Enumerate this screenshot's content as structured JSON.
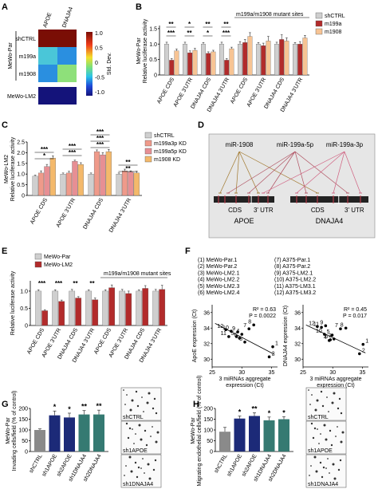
{
  "panels": {
    "A": {
      "label": "A",
      "columns": [
        "APOE",
        "DNAJA4"
      ],
      "group_label": "MeWo-Par",
      "row_labels": [
        "shCTRL",
        "m199a",
        "m1908",
        "MeWo-LM2"
      ],
      "colorbar": {
        "title": "Std. Dev.",
        "ticks": [
          "1.0",
          "0.5",
          "0",
          "-0.5",
          "-1.0"
        ]
      }
    },
    "B": {
      "label": "B",
      "ylabel": "MeWo-Par\nRelative luciferase activity",
      "bracket_label": "m199a/m1908 mutant sites",
      "categories": [
        "APOE CDS",
        "APOE 3'UTR",
        "DNAJA4 CDS",
        "DNAJA4 3'UTR",
        "APOE CDS",
        "APOE 3'UTR",
        "DNAJA4 CDS",
        "DNAJA4 3'UTR"
      ],
      "legend": [
        "shCTRL",
        "m199a",
        "m1908"
      ],
      "ticks": [
        "0",
        "0.5",
        "1.0",
        "1.5"
      ],
      "sig": [
        "**",
        "***",
        "*",
        "**",
        "**",
        "*",
        "**",
        "***"
      ]
    },
    "C": {
      "label": "C",
      "ylabel": "MeWo-LM2\nRelative luciferase activity",
      "categories": [
        "APOE CDS",
        "APOE 3'UTR",
        "DNAJA4 CDS",
        "DNAJA4 3'UTR"
      ],
      "legend": [
        "shCTRL",
        "m199a3p KD",
        "m199a5p KD",
        "m1908 KD"
      ],
      "ticks": [
        "0",
        "0.5",
        "1.0",
        "1.5",
        "2.0",
        "2.5"
      ],
      "sig": [
        "***",
        "*",
        "***",
        "***",
        "***",
        "***",
        "***",
        "**",
        "**"
      ]
    },
    "D": {
      "label": "D",
      "mirnas": [
        "miR-1908",
        "miR-199a-5p",
        "miR-199a-3p"
      ],
      "genes": [
        "APOE",
        "DNAJA4"
      ],
      "regions": [
        "CDS",
        "3' UTR"
      ]
    },
    "E": {
      "label": "E",
      "ylabel": "Relative luciferase activity",
      "legend": [
        "MeWo-Par",
        "MeWo-LM2"
      ],
      "bracket_label": "m199a/m1908 mutant sites",
      "categories": [
        "APOE CDS",
        "APOE 3'UTR",
        "DNAJA4 CDS",
        "DNAJA4 3'UTR",
        "APOE CDS",
        "APOE 3'UTR",
        "DNAJA4 CDS",
        "DNAJA4 3'UTR"
      ],
      "ticks": [
        "0",
        "0.5",
        "1.0"
      ],
      "sig": [
        "***",
        "***",
        "**",
        "**"
      ]
    },
    "F": {
      "label": "F",
      "legend_left": [
        "(1) MeWo-Par.1",
        "(2) MeWo-Par.2",
        "(3) MeWo-LM2.1",
        "(4) MeWo-LM2.2",
        "(5) MeWo-LM2.3",
        "(6) MeWo-LM2.4"
      ],
      "legend_right": [
        "(7) A375-Par.1",
        "(8) A375-Par.2",
        "(9) A375-LM2.1",
        "(10) A375-LM2.2",
        "(11) A375-LM3.1",
        "(12) A375-LM3.2"
      ],
      "left_stats": [
        "R² = 0.63",
        "P = 0.0022"
      ],
      "right_stats": [
        "R² = 0.45",
        "P = 0.017"
      ],
      "left_ylabel": "ApoE expression (Ct)",
      "right_ylabel": "DNAJA4 expression (Ct)",
      "xlabel": "3 miRNAs aggregate expression (Ct)",
      "xticks": [
        "25",
        "30",
        "35"
      ],
      "yticks": [
        "30",
        "32",
        "34",
        "36"
      ]
    },
    "G": {
      "label": "G",
      "ylabel": "MeWo-Par\nInvading cells/field (% of control)",
      "categories": [
        "shCTRL",
        "sh1APOE",
        "sh2APOE",
        "sh1DNAJA4",
        "sh2DNAJA4"
      ],
      "ticks": [
        "0",
        "50",
        "100",
        "150",
        "200"
      ],
      "sig": [
        "*",
        "*",
        "**",
        "**"
      ],
      "image_labels": [
        "shCTRL",
        "sh1APOE",
        "sh1DNAJA4"
      ]
    },
    "H": {
      "label": "H",
      "ylabel": "MeWo-Par\nMigrating endothelial cells/field (% of control)",
      "categories": [
        "shCTRL",
        "sh1APOE",
        "sh2APOE",
        "sh1DNAJA4",
        "sh2DNAJA4"
      ],
      "ticks": [
        "0",
        "50",
        "100",
        "150",
        "200"
      ],
      "sig": [
        "*",
        "**",
        "*",
        "*"
      ],
      "image_labels": [
        "shCTRL",
        "sh1APOE",
        "sh1DNAJA4"
      ]
    }
  },
  "colors": {
    "grey": "#cfcfcf",
    "red": "#b22b2b",
    "pink": "#e78f94",
    "salmon": "#ef9a8a",
    "orange": "#f4b96b",
    "peach": "#f7c494",
    "navy": "#1c2a78",
    "teal": "#357a72",
    "dotgrey": "#8a8a8a"
  },
  "chart_data": [
    {
      "panel": "A",
      "type": "heatmap",
      "x": [
        "APOE",
        "DNAJA4"
      ],
      "y": [
        "shCTRL",
        "m199a",
        "m1908",
        "MeWo-LM2"
      ],
      "values": [
        [
          1.1,
          1.1
        ],
        [
          0.1,
          -0.2
        ],
        [
          -0.2,
          0.2
        ],
        [
          -1.0,
          -1.0
        ]
      ]
    },
    {
      "panel": "B",
      "type": "bar",
      "ylim": [
        0,
        1.6
      ],
      "categories": [
        "APOE CDS",
        "APOE 3'UTR",
        "DNAJA4 CDS",
        "DNAJA4 3'UTR",
        "APOE CDS",
        "APOE 3'UTR",
        "DNAJA4 CDS",
        "DNAJA4 3'UTR"
      ],
      "series": [
        {
          "name": "shCTRL",
          "values": [
            1.0,
            1.0,
            1.0,
            1.0,
            1.0,
            1.0,
            1.0,
            1.0
          ],
          "errors": [
            0.06,
            0.06,
            0.05,
            0.06,
            0.08,
            0.05,
            0.06,
            0.05
          ]
        },
        {
          "name": "m199a",
          "values": [
            0.48,
            0.72,
            0.7,
            0.48,
            1.05,
            0.95,
            1.15,
            1.0
          ],
          "errors": [
            0.05,
            0.06,
            0.05,
            0.05,
            0.1,
            0.08,
            0.15,
            0.08
          ]
        },
        {
          "name": "m1908",
          "values": [
            0.78,
            0.8,
            0.75,
            0.85,
            1.25,
            1.1,
            1.1,
            1.2
          ],
          "errors": [
            0.06,
            0.06,
            0.05,
            0.05,
            0.12,
            0.15,
            0.1,
            0.08
          ]
        }
      ]
    },
    {
      "panel": "C",
      "type": "bar",
      "ylim": [
        0,
        2.5
      ],
      "categories": [
        "APOE CDS",
        "APOE 3'UTR",
        "DNAJA4 CDS",
        "DNAJA4 3'UTR"
      ],
      "series": [
        {
          "name": "shCTRL",
          "values": [
            0.9,
            1.0,
            1.0,
            1.0
          ],
          "errors": [
            0.05,
            0.05,
            0.05,
            0.05
          ]
        },
        {
          "name": "m199a3p KD",
          "values": [
            1.05,
            1.05,
            2.05,
            1.15
          ],
          "errors": [
            0.1,
            0.08,
            0.08,
            0.08
          ]
        },
        {
          "name": "m199a5p KD",
          "values": [
            1.35,
            1.6,
            1.9,
            1.1
          ],
          "errors": [
            0.1,
            0.05,
            0.1,
            0.05
          ]
        },
        {
          "name": "m1908 KD",
          "values": [
            1.75,
            1.45,
            2.05,
            1.05
          ],
          "errors": [
            0.1,
            0.08,
            0.1,
            0.08
          ]
        }
      ]
    },
    {
      "panel": "E",
      "type": "bar",
      "ylim": [
        0,
        1.3
      ],
      "categories": [
        "APOE CDS",
        "APOE 3'UTR",
        "DNAJA4 CDS",
        "DNAJA4 3'UTR",
        "APOE CDS",
        "APOE 3'UTR",
        "DNAJA4 CDS",
        "DNAJA4 3'UTR"
      ],
      "series": [
        {
          "name": "MeWo-Par",
          "values": [
            1.0,
            1.0,
            1.0,
            1.0,
            1.0,
            1.0,
            1.0,
            1.0
          ],
          "errors": [
            0.04,
            0.04,
            0.05,
            0.04,
            0.04,
            0.05,
            0.04,
            0.05
          ]
        },
        {
          "name": "MeWo-LM2",
          "values": [
            0.43,
            0.7,
            0.8,
            0.75,
            1.1,
            0.93,
            1.08,
            1.05
          ],
          "errors": [
            0.03,
            0.04,
            0.04,
            0.05,
            0.08,
            0.07,
            0.08,
            0.12
          ]
        }
      ]
    },
    {
      "panel": "F-left",
      "type": "scatter",
      "xlim": [
        25,
        36
      ],
      "ylim": [
        29,
        37
      ],
      "points": [
        {
          "id": 1,
          "x": 35.2,
          "y": 31.6
        },
        {
          "id": 2,
          "x": 34.6,
          "y": 30.3
        },
        {
          "id": 3,
          "x": 30.5,
          "y": 32.2
        },
        {
          "id": 4,
          "x": 30.0,
          "y": 33.2
        },
        {
          "id": 5,
          "x": 29.1,
          "y": 32.9
        },
        {
          "id": 6,
          "x": 29.6,
          "y": 32.7
        },
        {
          "id": 7,
          "x": 31.2,
          "y": 33.9
        },
        {
          "id": 8,
          "x": 32.0,
          "y": 34.4
        },
        {
          "id": 9,
          "x": 29.3,
          "y": 33.5
        },
        {
          "id": 10,
          "x": 28.2,
          "y": 33.6
        },
        {
          "id": 11,
          "x": 27.8,
          "y": 32.9
        },
        {
          "id": 12,
          "x": 27.3,
          "y": 33.8
        }
      ],
      "fit": {
        "x": [
          25.5,
          35.5
        ],
        "y": [
          34.6,
          30.6
        ]
      }
    },
    {
      "panel": "F-right",
      "type": "scatter",
      "xlim": [
        25,
        36
      ],
      "ylim": [
        29,
        37
      ],
      "points": [
        {
          "id": 1,
          "x": 35.1,
          "y": 31.9
        },
        {
          "id": 2,
          "x": 34.5,
          "y": 30.7
        },
        {
          "id": 3,
          "x": 30.2,
          "y": 32.6
        },
        {
          "id": 4,
          "x": 29.4,
          "y": 32.4
        },
        {
          "id": 5,
          "x": 29.9,
          "y": 33.1
        },
        {
          "id": 6,
          "x": 29.6,
          "y": 32.5
        },
        {
          "id": 7,
          "x": 31.3,
          "y": 33.9
        },
        {
          "id": 8,
          "x": 32.2,
          "y": 34.0
        },
        {
          "id": 9,
          "x": 28.8,
          "y": 34.3
        },
        {
          "id": 10,
          "x": 28.6,
          "y": 33.2
        },
        {
          "id": 11,
          "x": 28.1,
          "y": 34.1
        },
        {
          "id": 12,
          "x": 27.4,
          "y": 34.2
        }
      ],
      "fit": {
        "x": [
          25.5,
          35.5
        ],
        "y": [
          34.4,
          30.8
        ]
      }
    },
    {
      "panel": "G",
      "type": "bar",
      "ylim": [
        0,
        200
      ],
      "categories": [
        "shCTRL",
        "sh1APOE",
        "sh2APOE",
        "sh1DNAJA4",
        "sh2DNAJA4"
      ],
      "values": [
        100,
        168,
        158,
        172,
        172
      ],
      "errors": [
        5,
        20,
        20,
        18,
        20
      ]
    },
    {
      "panel": "H",
      "type": "bar",
      "ylim": [
        0,
        200
      ],
      "categories": [
        "shCTRL",
        "sh1APOE",
        "sh2APOE",
        "sh1DNAJA4",
        "sh2DNAJA4"
      ],
      "values": [
        92,
        153,
        165,
        145,
        150
      ],
      "errors": [
        20,
        12,
        15,
        15,
        12
      ]
    }
  ]
}
